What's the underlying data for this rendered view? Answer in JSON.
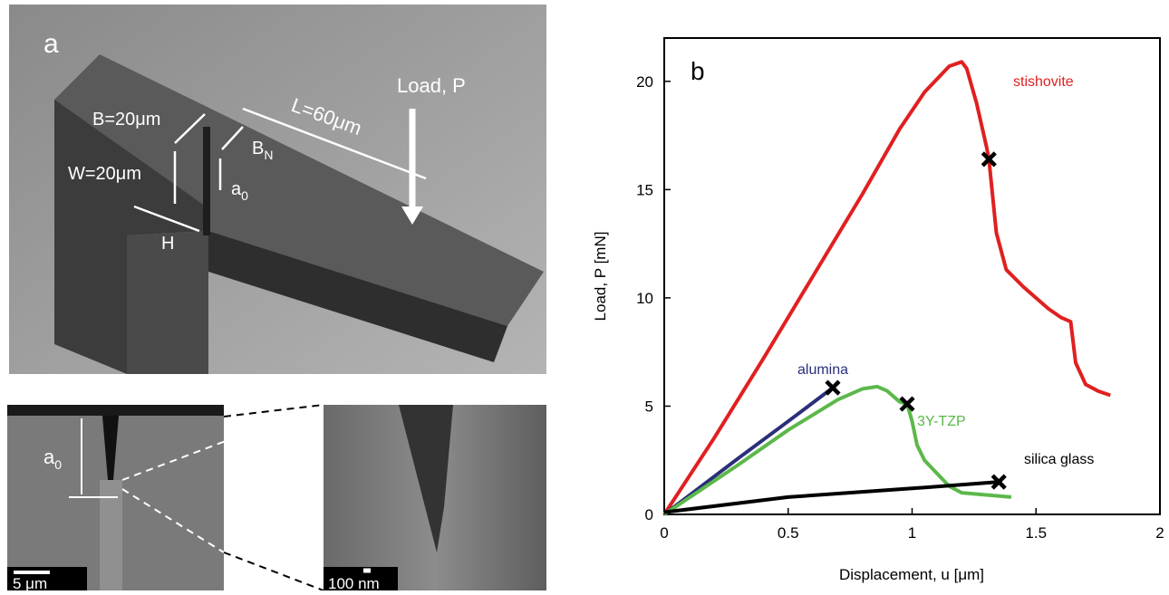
{
  "panel_a": {
    "label": "a",
    "load": "Load, P",
    "length": "L=60μm",
    "width_b": "B=20μm",
    "width_w": "W=20μm",
    "h": "H",
    "bn": {
      "main": "B",
      "sub": "N"
    },
    "a0": {
      "main": "a",
      "sub": "0"
    }
  },
  "panel_notch": {
    "a0": {
      "main": "a",
      "sub": "0"
    },
    "scale_bar": "5 μm"
  },
  "panel_zoom": {
    "scale_bar": "100 nm"
  },
  "chart_data": {
    "type": "line",
    "label": "b",
    "x_label": "Displacement, u [μm]",
    "y_label": "Load, P [mN]",
    "xlim": [
      0,
      2
    ],
    "xticks": [
      0,
      0.5,
      1,
      1.5,
      2
    ],
    "ylim": [
      0,
      22
    ],
    "yticks": [
      0,
      5,
      10,
      15,
      20
    ],
    "series": [
      {
        "name": "stishovite",
        "color": "#e02020",
        "x": [
          0,
          0.2,
          0.4,
          0.6,
          0.8,
          0.95,
          1.05,
          1.15,
          1.2,
          1.22,
          1.26,
          1.3,
          1.31,
          1.34,
          1.38,
          1.45,
          1.55,
          1.6,
          1.64,
          1.66,
          1.7,
          1.75,
          1.8
        ],
        "values": [
          0,
          3.5,
          7.2,
          11,
          14.8,
          17.8,
          19.5,
          20.7,
          20.9,
          20.6,
          19,
          17,
          16.4,
          13,
          11.3,
          10.5,
          9.5,
          9.1,
          8.9,
          7,
          6,
          5.7,
          5.5
        ]
      },
      {
        "name": "alumina",
        "color": "#2b2f7a",
        "x": [
          0,
          0.3,
          0.5,
          0.68
        ],
        "values": [
          0,
          2.6,
          4.3,
          5.85
        ]
      },
      {
        "name": "3Y-TZP",
        "color": "#5cb84a",
        "x": [
          0,
          0.3,
          0.5,
          0.7,
          0.8,
          0.86,
          0.9,
          0.95,
          0.98,
          1.0,
          1.02,
          1.05,
          1.1,
          1.15,
          1.2,
          1.3,
          1.4
        ],
        "values": [
          0,
          2.3,
          3.9,
          5.3,
          5.8,
          5.9,
          5.7,
          5.2,
          5.1,
          4.3,
          3.2,
          2.5,
          1.9,
          1.3,
          1.0,
          0.9,
          0.8
        ]
      },
      {
        "name": "silica glass",
        "color": "#000000",
        "x": [
          0,
          0.5,
          1.0,
          1.35
        ],
        "values": [
          0.1,
          0.8,
          1.2,
          1.5
        ]
      }
    ],
    "failure_points": {
      "x": [
        0.68,
        0.98,
        1.31,
        1.35
      ],
      "y": [
        5.85,
        5.1,
        16.4,
        1.5
      ]
    }
  }
}
